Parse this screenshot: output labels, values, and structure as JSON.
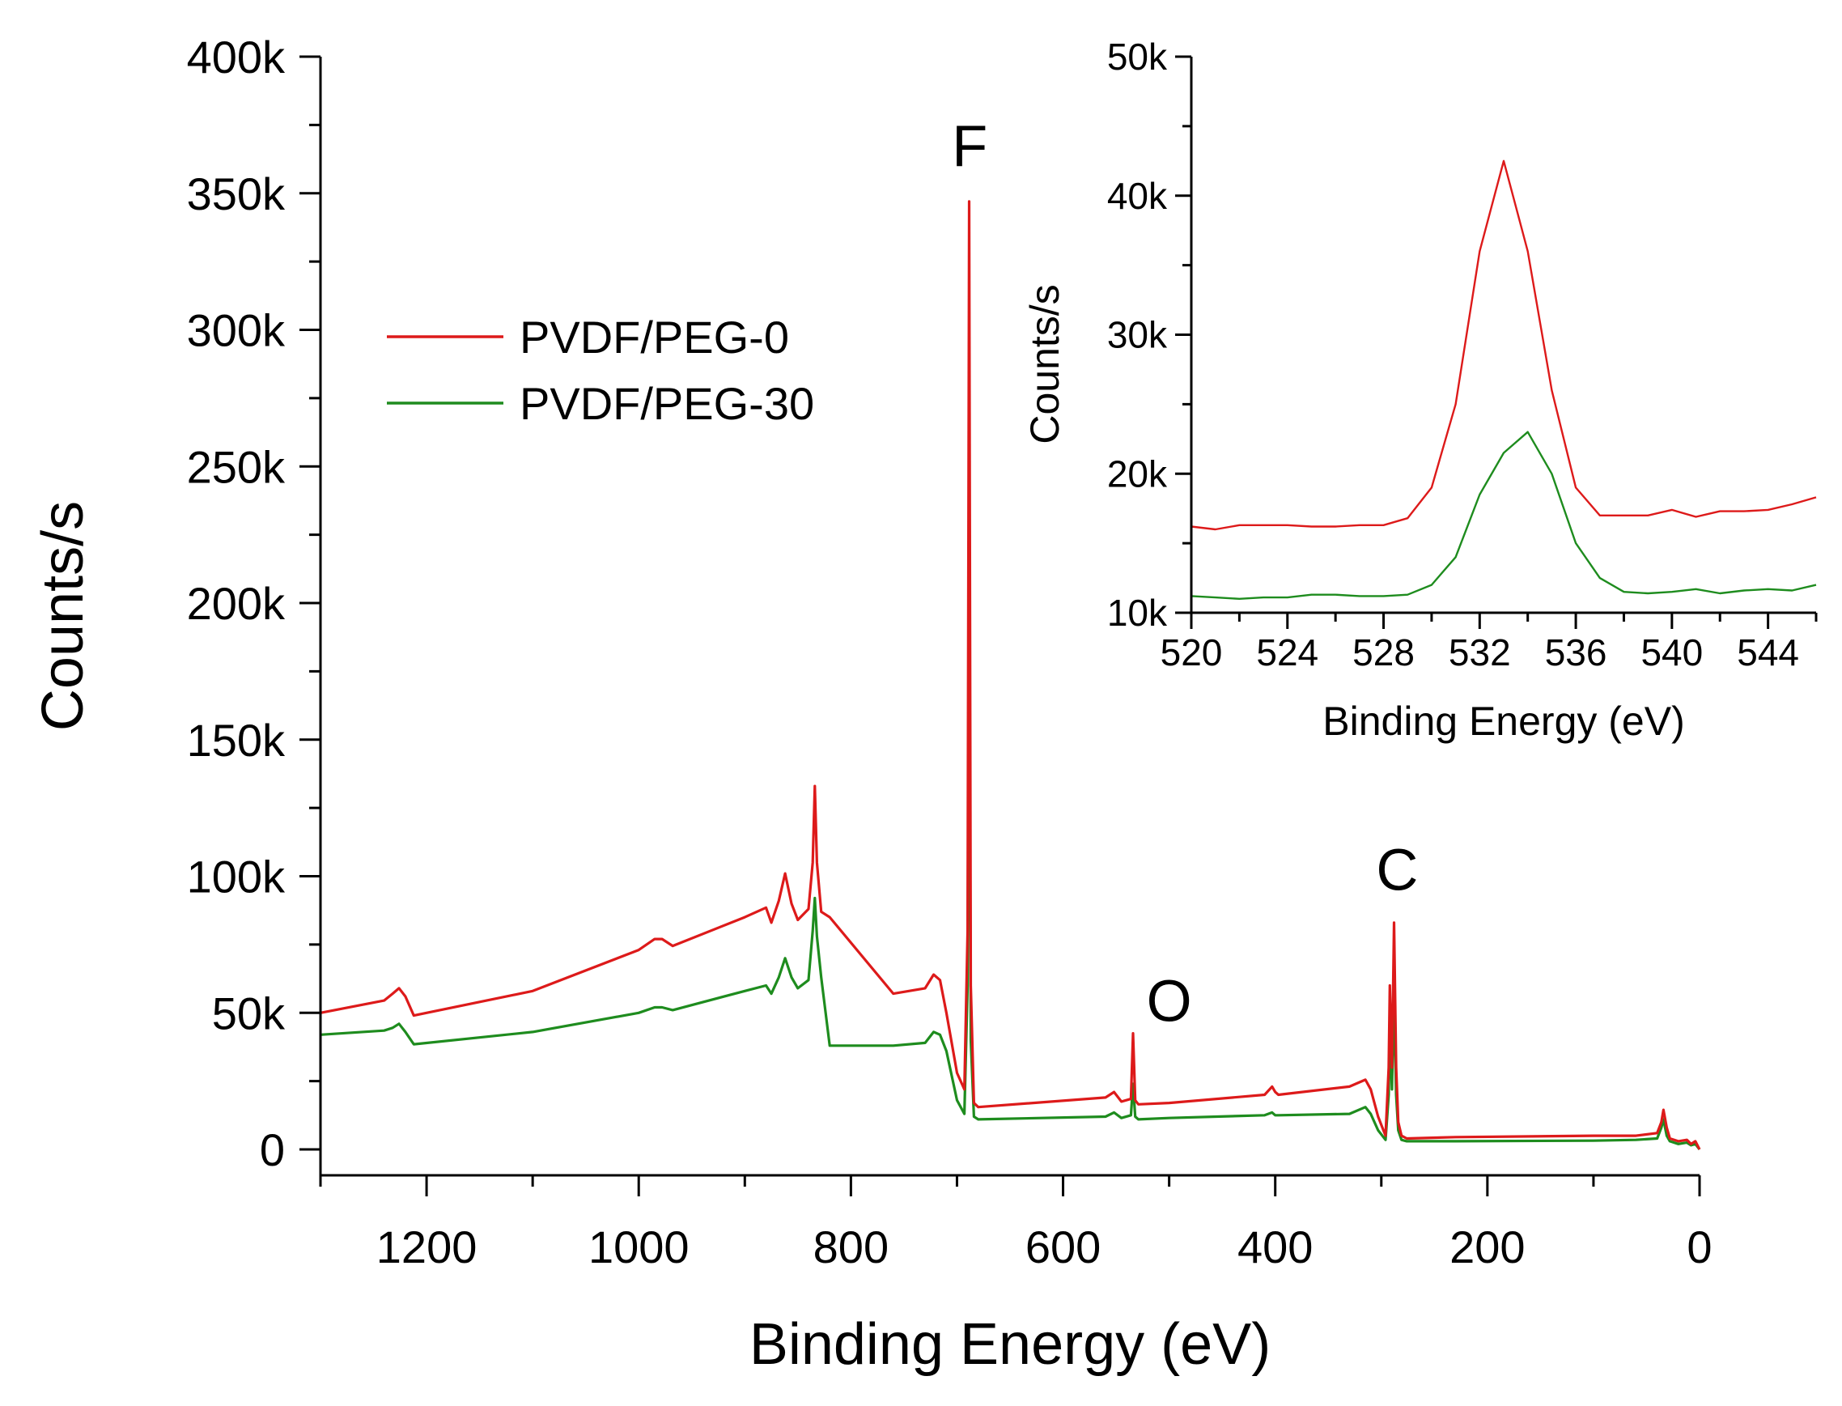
{
  "chart_data": [
    {
      "type": "line",
      "xlabel": "Binding Energy (eV)",
      "ylabel": "Counts/s",
      "xlim": [
        1300,
        0
      ],
      "ylim": [
        -10000,
        400000
      ],
      "x_ticks": [
        "1200",
        "1000",
        "800",
        "600",
        "400",
        "200",
        "0"
      ],
      "y_ticks": [
        "0",
        "50k",
        "100k",
        "150k",
        "200k",
        "250k",
        "300k",
        "350k",
        "400k"
      ],
      "legend": {
        "position": "upper-left"
      },
      "annotations": [
        {
          "text": "F",
          "x": 688,
          "y": 360000
        },
        {
          "text": "O",
          "x": 500,
          "y": 47000
        },
        {
          "text": "C",
          "x": 285,
          "y": 95000
        }
      ],
      "series": [
        {
          "name": "PVDF/PEG-0",
          "color": "#dd1a1a",
          "x": [
            1300,
            1240,
            1232,
            1226,
            1220,
            1212,
            1100,
            1000,
            985,
            978,
            968,
            900,
            880,
            875,
            868,
            862,
            856,
            850,
            840,
            836,
            834,
            832,
            828,
            820,
            760,
            730,
            722,
            716,
            710,
            700,
            693,
            690,
            688.5,
            687,
            684,
            680,
            560,
            552,
            545,
            536,
            534,
            532,
            529,
            500,
            410,
            403,
            400,
            397,
            330,
            315,
            310,
            303,
            296,
            293,
            292,
            290,
            289,
            288,
            286,
            284,
            281,
            276,
            230,
            100,
            60,
            40,
            36,
            34,
            31,
            28,
            20,
            12,
            8,
            4,
            0
          ],
          "y": [
            50000,
            54500,
            57000,
            59000,
            56000,
            49000,
            58000,
            73000,
            77000,
            77000,
            74500,
            85000,
            88500,
            83000,
            91000,
            101000,
            90000,
            84000,
            88000,
            105000,
            133000,
            105000,
            87000,
            85000,
            57000,
            59000,
            64000,
            62000,
            50000,
            28000,
            22000,
            80000,
            347000,
            60000,
            17000,
            15500,
            19000,
            21000,
            17500,
            18500,
            42500,
            18000,
            16500,
            17000,
            20000,
            23000,
            21000,
            20000,
            23000,
            25500,
            22000,
            12000,
            5000,
            30000,
            60000,
            30000,
            55000,
            83000,
            30000,
            10000,
            5000,
            4000,
            4500,
            5000,
            5000,
            6000,
            10000,
            14500,
            8000,
            4000,
            3000,
            3500,
            2000,
            3000,
            0
          ]
        },
        {
          "name": "PVDF/PEG-30",
          "color": "#1e8c1e",
          "x": [
            1300,
            1240,
            1232,
            1226,
            1220,
            1212,
            1100,
            1000,
            985,
            978,
            968,
            900,
            880,
            875,
            868,
            862,
            856,
            850,
            840,
            836,
            834,
            832,
            828,
            820,
            760,
            730,
            722,
            716,
            710,
            700,
            693,
            690,
            688.5,
            687,
            684,
            680,
            560,
            552,
            545,
            536,
            534,
            532,
            529,
            500,
            410,
            403,
            400,
            397,
            330,
            315,
            310,
            303,
            296,
            293,
            292,
            290,
            289,
            288,
            286,
            284,
            281,
            276,
            230,
            100,
            60,
            40,
            36,
            34,
            31,
            28,
            20,
            12,
            8,
            4,
            0
          ],
          "y": [
            42000,
            43500,
            44500,
            46000,
            43000,
            38500,
            43000,
            50000,
            52000,
            52000,
            51000,
            58000,
            60000,
            57000,
            63000,
            70000,
            63000,
            59000,
            62000,
            80000,
            92000,
            78000,
            63000,
            38000,
            38000,
            39000,
            43000,
            42000,
            36000,
            18000,
            13000,
            60000,
            237000,
            40000,
            12000,
            11000,
            12000,
            13500,
            11500,
            12500,
            24000,
            12000,
            11000,
            11500,
            12500,
            13500,
            12500,
            12500,
            13000,
            15500,
            13000,
            7000,
            3500,
            20000,
            45000,
            22000,
            40000,
            55000,
            20000,
            7000,
            3500,
            3000,
            3000,
            3200,
            3500,
            4000,
            8000,
            11000,
            5000,
            3000,
            2000,
            2500,
            1500,
            2000,
            0
          ]
        }
      ]
    },
    {
      "type": "line",
      "xlabel": "Binding Energy (eV)",
      "ylabel": "Counts/s",
      "xlim": [
        520,
        546
      ],
      "ylim": [
        10000,
        50000
      ],
      "x_ticks": [
        "520",
        "524",
        "528",
        "532",
        "536",
        "540",
        "544"
      ],
      "y_ticks": [
        "10k",
        "20k",
        "30k",
        "40k",
        "50k"
      ],
      "series": [
        {
          "name": "PVDF/PEG-0",
          "color": "#dd1a1a",
          "x": [
            520,
            521,
            522,
            523,
            524,
            525,
            526,
            527,
            528,
            529,
            530,
            531,
            532,
            533,
            534,
            535,
            536,
            537,
            538,
            539,
            540,
            541,
            542,
            543,
            544,
            545,
            546
          ],
          "y": [
            16200,
            16000,
            16300,
            16300,
            16300,
            16200,
            16200,
            16300,
            16300,
            16800,
            19000,
            25000,
            36000,
            42500,
            36000,
            26000,
            19000,
            17000,
            17000,
            17000,
            17400,
            16900,
            17300,
            17300,
            17400,
            17800,
            18300
          ]
        },
        {
          "name": "PVDF/PEG-30",
          "color": "#1e8c1e",
          "x": [
            520,
            521,
            522,
            523,
            524,
            525,
            526,
            527,
            528,
            529,
            530,
            531,
            532,
            533,
            534,
            535,
            536,
            537,
            538,
            539,
            540,
            541,
            542,
            543,
            544,
            545,
            546
          ],
          "y": [
            11200,
            11100,
            11000,
            11100,
            11100,
            11300,
            11300,
            11200,
            11200,
            11300,
            12000,
            14000,
            18500,
            21500,
            23000,
            20000,
            15000,
            12500,
            11500,
            11400,
            11500,
            11700,
            11400,
            11600,
            11700,
            11600,
            12000
          ]
        }
      ]
    }
  ]
}
